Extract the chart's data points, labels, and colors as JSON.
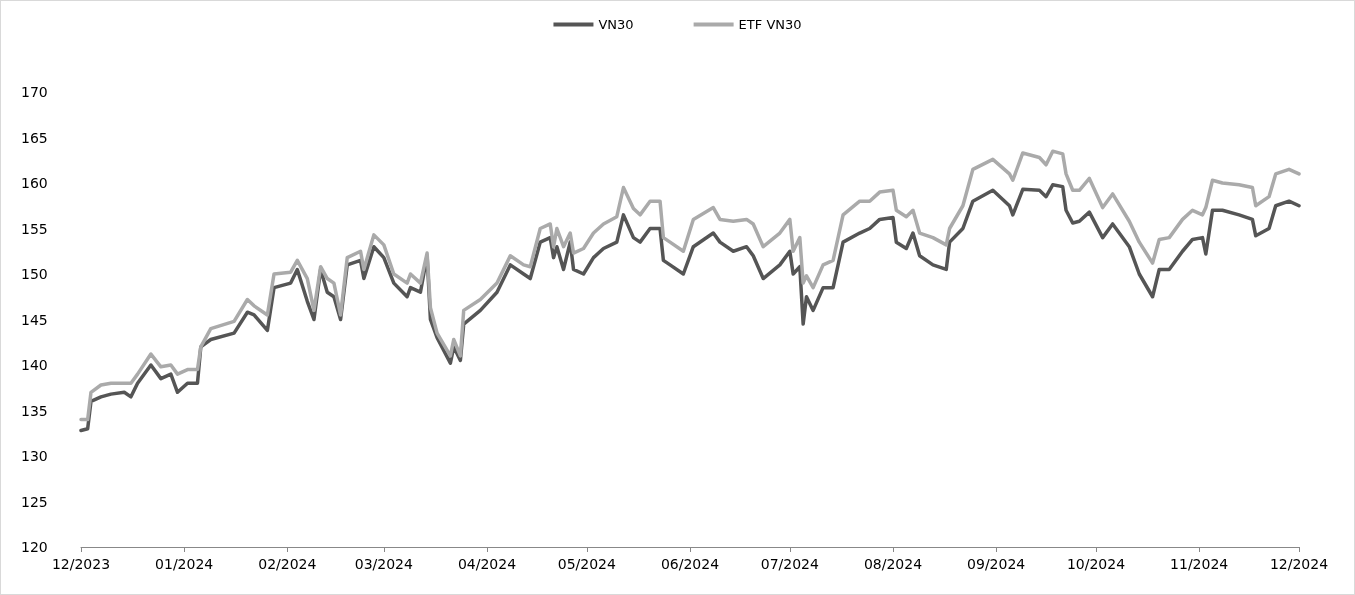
{
  "chart_data": {
    "type": "line",
    "x": [
      "2023-12-01",
      "2023-12-03",
      "2023-12-04",
      "2023-12-07",
      "2023-12-10",
      "2023-12-14",
      "2023-12-16",
      "2023-12-18",
      "2023-12-22",
      "2023-12-25",
      "2023-12-28",
      "2023-12-30",
      "2024-01-02",
      "2024-01-05",
      "2024-01-06",
      "2024-01-09",
      "2024-01-16",
      "2024-01-20",
      "2024-01-22",
      "2024-01-26",
      "2024-01-28",
      "2024-02-02",
      "2024-02-04",
      "2024-02-07",
      "2024-02-09",
      "2024-02-11",
      "2024-02-13",
      "2024-02-15",
      "2024-02-17",
      "2024-02-19",
      "2024-02-23",
      "2024-02-24",
      "2024-02-27",
      "2024-03-01",
      "2024-03-04",
      "2024-03-08",
      "2024-03-09",
      "2024-03-12",
      "2024-03-14",
      "2024-03-15",
      "2024-03-17",
      "2024-03-21",
      "2024-03-22",
      "2024-03-24",
      "2024-03-25",
      "2024-03-30",
      "2024-04-04",
      "2024-04-08",
      "2024-04-12",
      "2024-04-14",
      "2024-04-17",
      "2024-04-20",
      "2024-04-21",
      "2024-04-22",
      "2024-04-24",
      "2024-04-26",
      "2024-04-27",
      "2024-04-30",
      "2024-05-03",
      "2024-05-06",
      "2024-05-10",
      "2024-05-12",
      "2024-05-15",
      "2024-05-17",
      "2024-05-20",
      "2024-05-23",
      "2024-05-24",
      "2024-05-26",
      "2024-05-30",
      "2024-06-02",
      "2024-06-08",
      "2024-06-10",
      "2024-06-14",
      "2024-06-18",
      "2024-06-20",
      "2024-06-23",
      "2024-06-28",
      "2024-07-01",
      "2024-07-02",
      "2024-07-04",
      "2024-07-05",
      "2024-07-06",
      "2024-07-08",
      "2024-07-11",
      "2024-07-14",
      "2024-07-17",
      "2024-07-22",
      "2024-07-25",
      "2024-07-28",
      "2024-08-01",
      "2024-08-02",
      "2024-08-05",
      "2024-08-07",
      "2024-08-09",
      "2024-08-13",
      "2024-08-17",
      "2024-08-18",
      "2024-08-22",
      "2024-08-25",
      "2024-08-31",
      "2024-09-05",
      "2024-09-06",
      "2024-09-09",
      "2024-09-14",
      "2024-09-16",
      "2024-09-18",
      "2024-09-21",
      "2024-09-22",
      "2024-09-24",
      "2024-09-26",
      "2024-09-29",
      "2024-10-03",
      "2024-10-06",
      "2024-10-11",
      "2024-10-14",
      "2024-10-18",
      "2024-10-20",
      "2024-10-23",
      "2024-10-27",
      "2024-10-30",
      "2024-11-02",
      "2024-11-03",
      "2024-11-05",
      "2024-11-08",
      "2024-11-13",
      "2024-11-17",
      "2024-11-18",
      "2024-11-22",
      "2024-11-24",
      "2024-11-28",
      "2024-12-01"
    ],
    "series": [
      {
        "name": "VN30",
        "color": "#555555",
        "values": [
          132.8,
          133,
          136,
          136.5,
          136.8,
          137,
          136.5,
          138,
          140,
          138.5,
          139,
          137,
          138,
          138,
          142,
          142.8,
          143.5,
          145.8,
          145.5,
          143.8,
          148.5,
          149,
          150.5,
          147,
          145,
          150.5,
          148,
          147.5,
          145,
          151,
          151.5,
          149.5,
          153,
          151.8,
          149,
          147.5,
          148.5,
          148,
          152,
          145,
          143,
          140.2,
          142,
          140.5,
          144.5,
          146,
          148,
          151,
          150,
          149.5,
          153.5,
          154,
          151.8,
          153,
          150.5,
          153.5,
          150.5,
          150,
          151.8,
          152.8,
          153.5,
          156.5,
          154,
          153.5,
          155,
          155,
          151.5,
          151,
          150,
          153,
          154.5,
          153.5,
          152.5,
          153,
          152,
          149.5,
          151,
          152.5,
          150,
          150.8,
          144.5,
          147.5,
          146,
          148.5,
          148.5,
          153.5,
          154.5,
          155,
          156,
          156.2,
          153.5,
          152.8,
          154.5,
          152,
          151,
          150.5,
          153.5,
          155,
          158,
          159.2,
          157.5,
          156.5,
          159.3,
          159.2,
          158.5,
          159.8,
          159.6,
          157,
          155.6,
          155.8,
          156.8,
          154,
          155.5,
          153,
          150,
          147.5,
          150.5,
          150.5,
          152.5,
          153.8,
          154,
          152.2,
          157,
          157,
          156.5,
          156,
          154.2,
          155,
          157.5,
          158,
          157.5
        ]
      },
      {
        "name": "ETF VN30",
        "color": "#aaaaaa",
        "values": [
          134,
          134,
          137,
          137.8,
          138,
          138,
          138,
          139,
          141.2,
          139.8,
          140,
          139,
          139.5,
          139.5,
          142,
          144,
          144.8,
          147.2,
          146.5,
          145.5,
          150,
          150.2,
          151.5,
          149.5,
          146,
          150.8,
          149.5,
          149,
          145.5,
          151.8,
          152.5,
          150.5,
          154.3,
          153.2,
          150,
          149,
          150,
          149,
          152.3,
          146.3,
          143.5,
          141,
          142.8,
          141,
          146,
          147.2,
          149,
          152,
          151,
          150.8,
          155,
          155.5,
          153,
          155,
          153,
          154.5,
          152.3,
          152.8,
          154.5,
          155.5,
          156.3,
          159.5,
          157.2,
          156.5,
          158,
          158,
          154,
          153.5,
          152.5,
          156,
          157.3,
          156,
          155.8,
          156,
          155.5,
          153,
          154.5,
          156,
          152.5,
          154,
          149,
          149.8,
          148.5,
          151,
          151.5,
          156.5,
          158,
          158,
          159,
          159.2,
          157,
          156.3,
          157,
          154.5,
          154,
          153.2,
          155,
          157.5,
          161.5,
          162.6,
          161,
          160.3,
          163.3,
          162.8,
          162,
          163.5,
          163.2,
          161,
          159.2,
          159.2,
          160.5,
          157.3,
          158.8,
          155.8,
          153.5,
          151.2,
          153.8,
          154,
          156,
          157,
          156.5,
          157.3,
          160.3,
          160,
          159.8,
          159.5,
          157.5,
          158.5,
          161,
          161.5,
          161
        ]
      }
    ],
    "xlim": [
      "2023-12-01",
      "2024-12-01"
    ],
    "xticks": [
      {
        "value": "2023-12-01",
        "label": "12/2023"
      },
      {
        "value": "2024-01-01",
        "label": "01/2024"
      },
      {
        "value": "2024-02-01",
        "label": "02/2024"
      },
      {
        "value": "2024-03-01",
        "label": "03/2024"
      },
      {
        "value": "2024-04-01",
        "label": "04/2024"
      },
      {
        "value": "2024-05-01",
        "label": "05/2024"
      },
      {
        "value": "2024-06-01",
        "label": "06/2024"
      },
      {
        "value": "2024-07-01",
        "label": "07/2024"
      },
      {
        "value": "2024-08-01",
        "label": "08/2024"
      },
      {
        "value": "2024-09-01",
        "label": "09/2024"
      },
      {
        "value": "2024-10-01",
        "label": "10/2024"
      },
      {
        "value": "2024-11-01",
        "label": "11/2024"
      },
      {
        "value": "2024-12-01",
        "label": "12/2024"
      }
    ],
    "ylim": [
      120,
      170
    ],
    "yticks": [
      120,
      125,
      130,
      135,
      140,
      145,
      150,
      155,
      160,
      165,
      170
    ],
    "grid": false,
    "legend": "top",
    "marker": "none",
    "line_style": "solid"
  }
}
